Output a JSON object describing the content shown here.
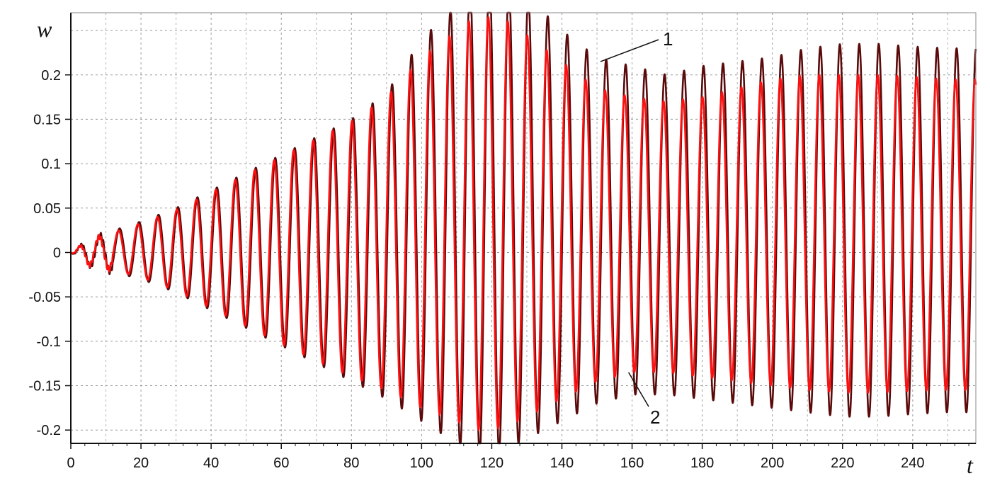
{
  "chart_data": {
    "type": "line",
    "title": "",
    "xlabel": "t",
    "ylabel": "w",
    "xlim": [
      0,
      258
    ],
    "ylim": [
      -0.215,
      0.27
    ],
    "x_ticks": [
      0,
      20,
      40,
      60,
      80,
      100,
      120,
      140,
      160,
      180,
      200,
      220,
      240
    ],
    "y_ticks": [
      -0.2,
      -0.15,
      -0.1,
      -0.05,
      0,
      0.05,
      0.1,
      0.15,
      0.2
    ],
    "x_tick_labels": [
      "0",
      "20",
      "40",
      "60",
      "80",
      "100",
      "120",
      "140",
      "160",
      "180",
      "200",
      "220",
      "240"
    ],
    "y_tick_labels": [
      "-0.2",
      "-0.15",
      "-0.1",
      "-0.05",
      "0",
      "0.05",
      "0.1",
      "0.15",
      "0.2"
    ],
    "grid": true,
    "grid_style": "dotted",
    "oscillation_period": 5.55,
    "series": [
      {
        "name": "1",
        "color": "#5a0a0a",
        "envelope": {
          "t": [
            0,
            5,
            10,
            20,
            30,
            40,
            50,
            60,
            70,
            80,
            90,
            100,
            110,
            115,
            120,
            125,
            130,
            140,
            150,
            160,
            170,
            180,
            190,
            200,
            210,
            220,
            230,
            240,
            250,
            258
          ],
          "max": [
            0.0,
            0.015,
            0.022,
            0.035,
            0.05,
            0.07,
            0.09,
            0.11,
            0.13,
            0.15,
            0.18,
            0.24,
            0.28,
            0.31,
            0.31,
            0.3,
            0.29,
            0.25,
            0.22,
            0.21,
            0.2,
            0.21,
            0.215,
            0.22,
            0.23,
            0.235,
            0.235,
            0.232,
            0.23,
            0.23
          ],
          "min": [
            0.0,
            -0.015,
            -0.02,
            -0.03,
            -0.045,
            -0.065,
            -0.085,
            -0.105,
            -0.125,
            -0.145,
            -0.165,
            -0.19,
            -0.215,
            -0.225,
            -0.225,
            -0.22,
            -0.21,
            -0.19,
            -0.17,
            -0.16,
            -0.16,
            -0.165,
            -0.17,
            -0.175,
            -0.18,
            -0.185,
            -0.185,
            -0.182,
            -0.18,
            -0.18
          ]
        }
      },
      {
        "name": "2",
        "color": "#ff1010",
        "envelope": {
          "t": [
            0,
            5,
            10,
            20,
            30,
            40,
            50,
            60,
            70,
            80,
            90,
            100,
            110,
            115,
            120,
            125,
            130,
            140,
            150,
            160,
            170,
            180,
            190,
            200,
            210,
            220,
            230,
            240,
            250,
            258
          ],
          "max": [
            0.0,
            0.014,
            0.02,
            0.033,
            0.048,
            0.068,
            0.088,
            0.108,
            0.128,
            0.148,
            0.175,
            0.22,
            0.25,
            0.265,
            0.265,
            0.26,
            0.245,
            0.215,
            0.185,
            0.175,
            0.17,
            0.175,
            0.185,
            0.195,
            0.2,
            0.2,
            0.2,
            0.198,
            0.195,
            0.195
          ],
          "min": [
            0.0,
            -0.014,
            -0.018,
            -0.028,
            -0.043,
            -0.063,
            -0.083,
            -0.103,
            -0.122,
            -0.14,
            -0.155,
            -0.175,
            -0.19,
            -0.2,
            -0.2,
            -0.195,
            -0.185,
            -0.165,
            -0.145,
            -0.135,
            -0.135,
            -0.14,
            -0.145,
            -0.15,
            -0.155,
            -0.158,
            -0.158,
            -0.156,
            -0.155,
            -0.155
          ]
        }
      }
    ],
    "annotations": [
      {
        "text": "1",
        "points_to_series": "1",
        "at": [
          151,
          0.215
        ]
      },
      {
        "text": "2",
        "points_to_series": "2",
        "at": [
          159,
          -0.135
        ]
      }
    ]
  }
}
